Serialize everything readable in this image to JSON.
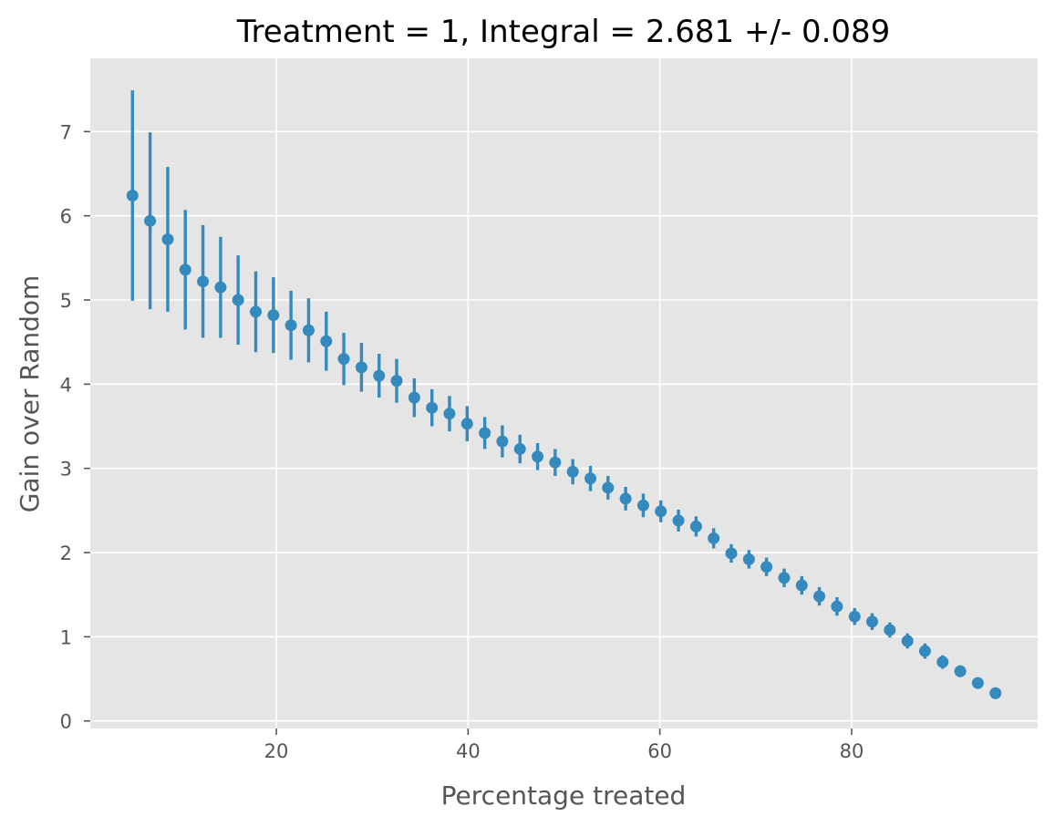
{
  "chart_data": {
    "type": "scatter",
    "title": "Treatment = 1, Integral = 2.681 +/- 0.089",
    "xlabel": "Percentage treated",
    "ylabel": "Gain over Random",
    "xlim": [
      0.6,
      99.4
    ],
    "ylim": [
      -0.09,
      7.87
    ],
    "xticks": [
      20,
      40,
      60,
      80
    ],
    "yticks": [
      0,
      1,
      2,
      3,
      4,
      5,
      6,
      7
    ],
    "grid": true,
    "style": "ggplot",
    "marker_color": "#348ABD",
    "background_color": "#E5E5E5",
    "series": [
      {
        "x": [
          5.0,
          6.84,
          8.68,
          10.51,
          12.35,
          14.19,
          16.02,
          17.86,
          19.7,
          21.53,
          23.37,
          25.21,
          27.04,
          28.88,
          30.72,
          32.55,
          34.39,
          36.23,
          38.06,
          39.9,
          41.74,
          43.57,
          45.41,
          47.25,
          49.08,
          50.92,
          52.76,
          54.59,
          56.43,
          58.27,
          60.1,
          61.94,
          63.78,
          65.61,
          67.45,
          69.29,
          71.12,
          72.96,
          74.8,
          76.63,
          78.47,
          80.31,
          82.14,
          83.98,
          85.82,
          87.65,
          89.49,
          91.33,
          93.16,
          95.0
        ],
        "y": [
          6.24,
          5.94,
          5.72,
          5.36,
          5.22,
          5.15,
          5.0,
          4.86,
          4.82,
          4.7,
          4.64,
          4.51,
          4.3,
          4.2,
          4.1,
          4.04,
          3.84,
          3.72,
          3.65,
          3.53,
          3.42,
          3.32,
          3.23,
          3.14,
          3.07,
          2.96,
          2.88,
          2.77,
          2.64,
          2.56,
          2.49,
          2.38,
          2.31,
          2.17,
          1.99,
          1.92,
          1.83,
          1.7,
          1.61,
          1.48,
          1.36,
          1.24,
          1.18,
          1.08,
          0.95,
          0.83,
          0.7,
          0.59,
          0.45,
          0.33
        ],
        "yerr": [
          1.25,
          1.05,
          0.86,
          0.71,
          0.67,
          0.6,
          0.53,
          0.48,
          0.45,
          0.41,
          0.38,
          0.35,
          0.31,
          0.29,
          0.26,
          0.26,
          0.23,
          0.22,
          0.21,
          0.21,
          0.19,
          0.19,
          0.17,
          0.16,
          0.16,
          0.15,
          0.15,
          0.14,
          0.14,
          0.14,
          0.13,
          0.13,
          0.12,
          0.12,
          0.11,
          0.11,
          0.11,
          0.11,
          0.11,
          0.11,
          0.11,
          0.1,
          0.1,
          0.09,
          0.09,
          0.09,
          0.08,
          0.07,
          0.06,
          0.05
        ]
      }
    ]
  }
}
